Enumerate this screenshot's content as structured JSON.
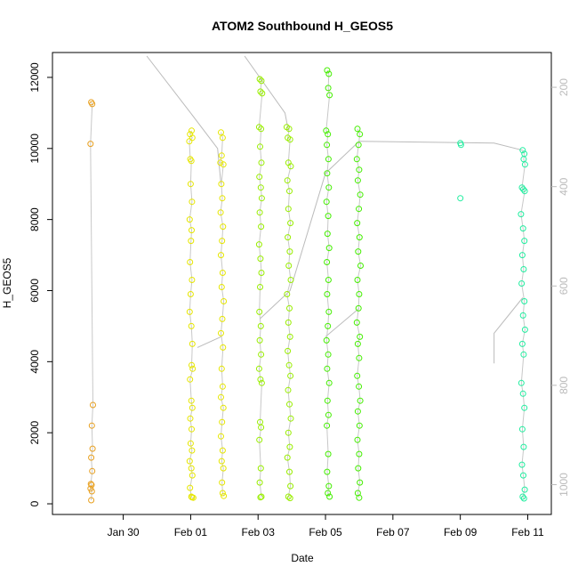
{
  "chart_data": {
    "type": "scatter",
    "title": "ATOM2 Southbound H_GEOS5",
    "xlabel": "Date",
    "ylabel": "H_GEOS5",
    "x_unit": "days (0 = Jan 30)",
    "x_range": [
      -2.1,
      12.7
    ],
    "ylim": [
      -300,
      12700
    ],
    "x_ticks": [
      {
        "label": "Jan 30",
        "x": 0
      },
      {
        "label": "Feb 01",
        "x": 2
      },
      {
        "label": "Feb 03",
        "x": 4
      },
      {
        "label": "Feb 05",
        "x": 6
      },
      {
        "label": "Feb 07",
        "x": 8
      },
      {
        "label": "Feb 09",
        "x": 10
      },
      {
        "label": "Feb 11",
        "x": 12
      }
    ],
    "y_ticks": [
      0,
      2000,
      4000,
      6000,
      8000,
      10000,
      12000
    ],
    "right_axis": {
      "inverted": true,
      "range": [
        130,
        1060
      ],
      "ticks": [
        200,
        400,
        600,
        800,
        1000
      ],
      "color": "#bbbbbb"
    },
    "marker": "open-circle",
    "grid": false,
    "series": [
      {
        "color": "#e8a020",
        "points": [
          [
            -0.95,
            11300
          ],
          [
            -0.92,
            11250
          ],
          [
            -0.97,
            10130
          ],
          [
            -0.9,
            2780
          ],
          [
            -0.93,
            2200
          ],
          [
            -0.91,
            1550
          ],
          [
            -0.95,
            1300
          ],
          [
            -0.92,
            920
          ],
          [
            -0.96,
            560
          ],
          [
            -0.94,
            530
          ],
          [
            -0.97,
            430
          ],
          [
            -0.93,
            350
          ],
          [
            -0.95,
            100
          ]
        ]
      },
      {
        "color": "#e6e600",
        "points": [
          [
            1.98,
            10400
          ],
          [
            2.03,
            10500
          ],
          [
            2.05,
            10300
          ],
          [
            1.96,
            10200
          ],
          [
            1.99,
            9700
          ],
          [
            2.02,
            9650
          ],
          [
            2.0,
            9000
          ],
          [
            2.04,
            8500
          ],
          [
            1.97,
            8000
          ],
          [
            2.03,
            7700
          ],
          [
            2.01,
            7400
          ],
          [
            1.98,
            6800
          ],
          [
            2.04,
            6300
          ],
          [
            2.0,
            5900
          ],
          [
            1.97,
            5400
          ],
          [
            2.02,
            5000
          ],
          [
            2.05,
            4500
          ],
          [
            2.03,
            3900
          ],
          [
            2.06,
            3800
          ],
          [
            1.98,
            3500
          ],
          [
            2.02,
            2900
          ],
          [
            2.05,
            2700
          ],
          [
            1.99,
            2400
          ],
          [
            2.03,
            2100
          ],
          [
            2.0,
            1700
          ],
          [
            2.04,
            1500
          ],
          [
            1.97,
            1200
          ],
          [
            2.02,
            1000
          ],
          [
            2.05,
            800
          ],
          [
            1.98,
            450
          ],
          [
            2.02,
            200
          ],
          [
            2.04,
            180
          ],
          [
            2.08,
            170
          ],
          [
            2.9,
            10450
          ],
          [
            2.95,
            10300
          ],
          [
            2.92,
            9800
          ],
          [
            2.88,
            9600
          ],
          [
            2.97,
            9550
          ],
          [
            2.91,
            9000
          ],
          [
            2.94,
            8600
          ],
          [
            2.89,
            8200
          ],
          [
            2.96,
            7800
          ],
          [
            2.93,
            7400
          ],
          [
            2.9,
            7000
          ],
          [
            2.95,
            6500
          ],
          [
            2.92,
            6100
          ],
          [
            2.98,
            5700
          ],
          [
            2.94,
            5200
          ],
          [
            2.9,
            4800
          ],
          [
            2.96,
            4400
          ],
          [
            2.92,
            3800
          ],
          [
            2.95,
            3300
          ],
          [
            2.9,
            3000
          ],
          [
            2.97,
            2700
          ],
          [
            2.93,
            2300
          ],
          [
            2.9,
            1900
          ],
          [
            2.95,
            1500
          ],
          [
            2.92,
            1200
          ],
          [
            2.97,
            1000
          ],
          [
            2.93,
            600
          ],
          [
            2.95,
            300
          ],
          [
            2.98,
            220
          ]
        ]
      },
      {
        "color": "#99ee00",
        "points": [
          [
            4.05,
            11950
          ],
          [
            4.1,
            11900
          ],
          [
            4.07,
            11600
          ],
          [
            4.12,
            11550
          ],
          [
            4.03,
            10600
          ],
          [
            4.09,
            10550
          ],
          [
            4.06,
            10050
          ],
          [
            4.1,
            9600
          ],
          [
            4.04,
            9200
          ],
          [
            4.08,
            8900
          ],
          [
            4.11,
            8600
          ],
          [
            4.05,
            8200
          ],
          [
            4.09,
            7800
          ],
          [
            4.03,
            7300
          ],
          [
            4.07,
            6900
          ],
          [
            4.1,
            6500
          ],
          [
            4.06,
            6100
          ],
          [
            4.04,
            5400
          ],
          [
            4.08,
            5000
          ],
          [
            4.05,
            4600
          ],
          [
            4.09,
            4200
          ],
          [
            4.03,
            3800
          ],
          [
            4.07,
            3500
          ],
          [
            4.11,
            3400
          ],
          [
            4.06,
            2300
          ],
          [
            4.09,
            2150
          ],
          [
            4.04,
            1800
          ],
          [
            4.08,
            1000
          ],
          [
            4.05,
            600
          ],
          [
            4.1,
            200
          ],
          [
            4.07,
            180
          ],
          [
            4.85,
            10600
          ],
          [
            4.92,
            10550
          ],
          [
            4.88,
            10300
          ],
          [
            4.95,
            10250
          ],
          [
            4.9,
            9600
          ],
          [
            4.97,
            9500
          ],
          [
            4.87,
            9100
          ],
          [
            4.93,
            8800
          ],
          [
            4.9,
            8300
          ],
          [
            4.96,
            7900
          ],
          [
            4.88,
            7500
          ],
          [
            4.94,
            7100
          ],
          [
            4.91,
            6700
          ],
          [
            4.97,
            6300
          ],
          [
            4.86,
            5900
          ],
          [
            4.93,
            5500
          ],
          [
            4.9,
            5100
          ],
          [
            4.95,
            4700
          ],
          [
            4.88,
            4300
          ],
          [
            4.92,
            3900
          ],
          [
            4.96,
            3600
          ],
          [
            4.89,
            3200
          ],
          [
            4.93,
            2800
          ],
          [
            4.97,
            2400
          ],
          [
            4.9,
            2000
          ],
          [
            4.94,
            1600
          ],
          [
            4.87,
            1300
          ],
          [
            4.93,
            900
          ],
          [
            4.96,
            500
          ],
          [
            4.9,
            200
          ],
          [
            4.95,
            160
          ]
        ]
      },
      {
        "color": "#44ee00",
        "points": [
          [
            6.05,
            12200
          ],
          [
            6.1,
            12100
          ],
          [
            6.08,
            11700
          ],
          [
            6.12,
            11500
          ],
          [
            6.02,
            10500
          ],
          [
            6.07,
            10400
          ],
          [
            6.04,
            10100
          ],
          [
            6.09,
            9700
          ],
          [
            6.05,
            9300
          ],
          [
            6.1,
            8900
          ],
          [
            6.03,
            8500
          ],
          [
            6.08,
            8100
          ],
          [
            6.06,
            7600
          ],
          [
            6.11,
            7200
          ],
          [
            6.04,
            6800
          ],
          [
            6.09,
            6300
          ],
          [
            6.05,
            5900
          ],
          [
            6.1,
            5400
          ],
          [
            6.07,
            5000
          ],
          [
            6.03,
            4600
          ],
          [
            6.08,
            4200
          ],
          [
            6.05,
            3800
          ],
          [
            6.11,
            3400
          ],
          [
            6.06,
            2900
          ],
          [
            6.09,
            2500
          ],
          [
            6.04,
            2200
          ],
          [
            6.08,
            1400
          ],
          [
            6.05,
            900
          ],
          [
            6.1,
            500
          ],
          [
            6.07,
            300
          ],
          [
            6.12,
            200
          ],
          [
            6.95,
            10550
          ],
          [
            7.02,
            10400
          ],
          [
            6.98,
            10100
          ],
          [
            6.93,
            9700
          ],
          [
            7.0,
            9400
          ],
          [
            6.96,
            9100
          ],
          [
            7.03,
            8700
          ],
          [
            6.99,
            8300
          ],
          [
            6.94,
            7900
          ],
          [
            7.01,
            7500
          ],
          [
            6.97,
            7100
          ],
          [
            7.04,
            6700
          ],
          [
            6.95,
            6300
          ],
          [
            7.0,
            5900
          ],
          [
            6.98,
            5500
          ],
          [
            6.93,
            5100
          ],
          [
            7.02,
            4700
          ],
          [
            6.96,
            4500
          ],
          [
            7.0,
            4100
          ],
          [
            6.94,
            3600
          ],
          [
            6.99,
            3300
          ],
          [
            7.03,
            2900
          ],
          [
            6.96,
            2600
          ],
          [
            7.01,
            2200
          ],
          [
            6.95,
            1800
          ],
          [
            7.0,
            1400
          ],
          [
            6.97,
            1000
          ],
          [
            7.02,
            600
          ],
          [
            6.96,
            300
          ],
          [
            7.0,
            170
          ]
        ]
      },
      {
        "color": "#22eea0",
        "points": [
          [
            10.0,
            10150
          ],
          [
            10.02,
            10100
          ],
          [
            10.0,
            8600
          ],
          [
            11.85,
            9950
          ],
          [
            11.9,
            9850
          ],
          [
            11.88,
            9700
          ],
          [
            11.92,
            9550
          ],
          [
            11.83,
            8900
          ],
          [
            11.87,
            8850
          ],
          [
            11.91,
            8800
          ],
          [
            11.8,
            8150
          ],
          [
            11.86,
            7750
          ],
          [
            11.9,
            7400
          ],
          [
            11.84,
            7000
          ],
          [
            11.88,
            6600
          ],
          [
            11.82,
            6200
          ],
          [
            11.9,
            5700
          ],
          [
            11.86,
            5300
          ],
          [
            11.92,
            4900
          ],
          [
            11.84,
            4500
          ],
          [
            11.88,
            4200
          ],
          [
            11.81,
            3400
          ],
          [
            11.86,
            3100
          ],
          [
            11.9,
            2700
          ],
          [
            11.84,
            2100
          ],
          [
            11.88,
            1600
          ],
          [
            11.83,
            1100
          ],
          [
            11.87,
            800
          ],
          [
            11.91,
            400
          ],
          [
            11.85,
            200
          ],
          [
            11.89,
            150
          ]
        ]
      }
    ],
    "track_lines": [
      {
        "color": "#bbbbbb",
        "points": [
          [
            0.7,
            12600
          ],
          [
            2.0,
            11000
          ],
          [
            2.8,
            10000
          ],
          [
            2.9,
            9000
          ]
        ]
      },
      {
        "color": "#bbbbbb",
        "points": [
          [
            3.6,
            12600
          ],
          [
            4.8,
            11000
          ],
          [
            4.9,
            10500
          ]
        ]
      },
      {
        "color": "#bbbbbb",
        "points": [
          [
            7.0,
            10200
          ],
          [
            11.0,
            10150
          ],
          [
            11.85,
            9950
          ]
        ]
      },
      {
        "color": "#bbbbbb",
        "points": [
          [
            2.2,
            4400
          ],
          [
            2.9,
            4700
          ]
        ]
      },
      {
        "color": "#bbbbbb",
        "points": [
          [
            4.05,
            5200
          ],
          [
            4.95,
            6000
          ],
          [
            6.0,
            9300
          ],
          [
            7.0,
            10200
          ]
        ]
      },
      {
        "color": "#bbbbbb",
        "points": [
          [
            6.0,
            4700
          ],
          [
            7.0,
            5500
          ]
        ]
      },
      {
        "color": "#bbbbbb",
        "points": [
          [
            11.0,
            3950
          ],
          [
            11.0,
            4800
          ],
          [
            11.85,
            5800
          ]
        ]
      }
    ]
  }
}
